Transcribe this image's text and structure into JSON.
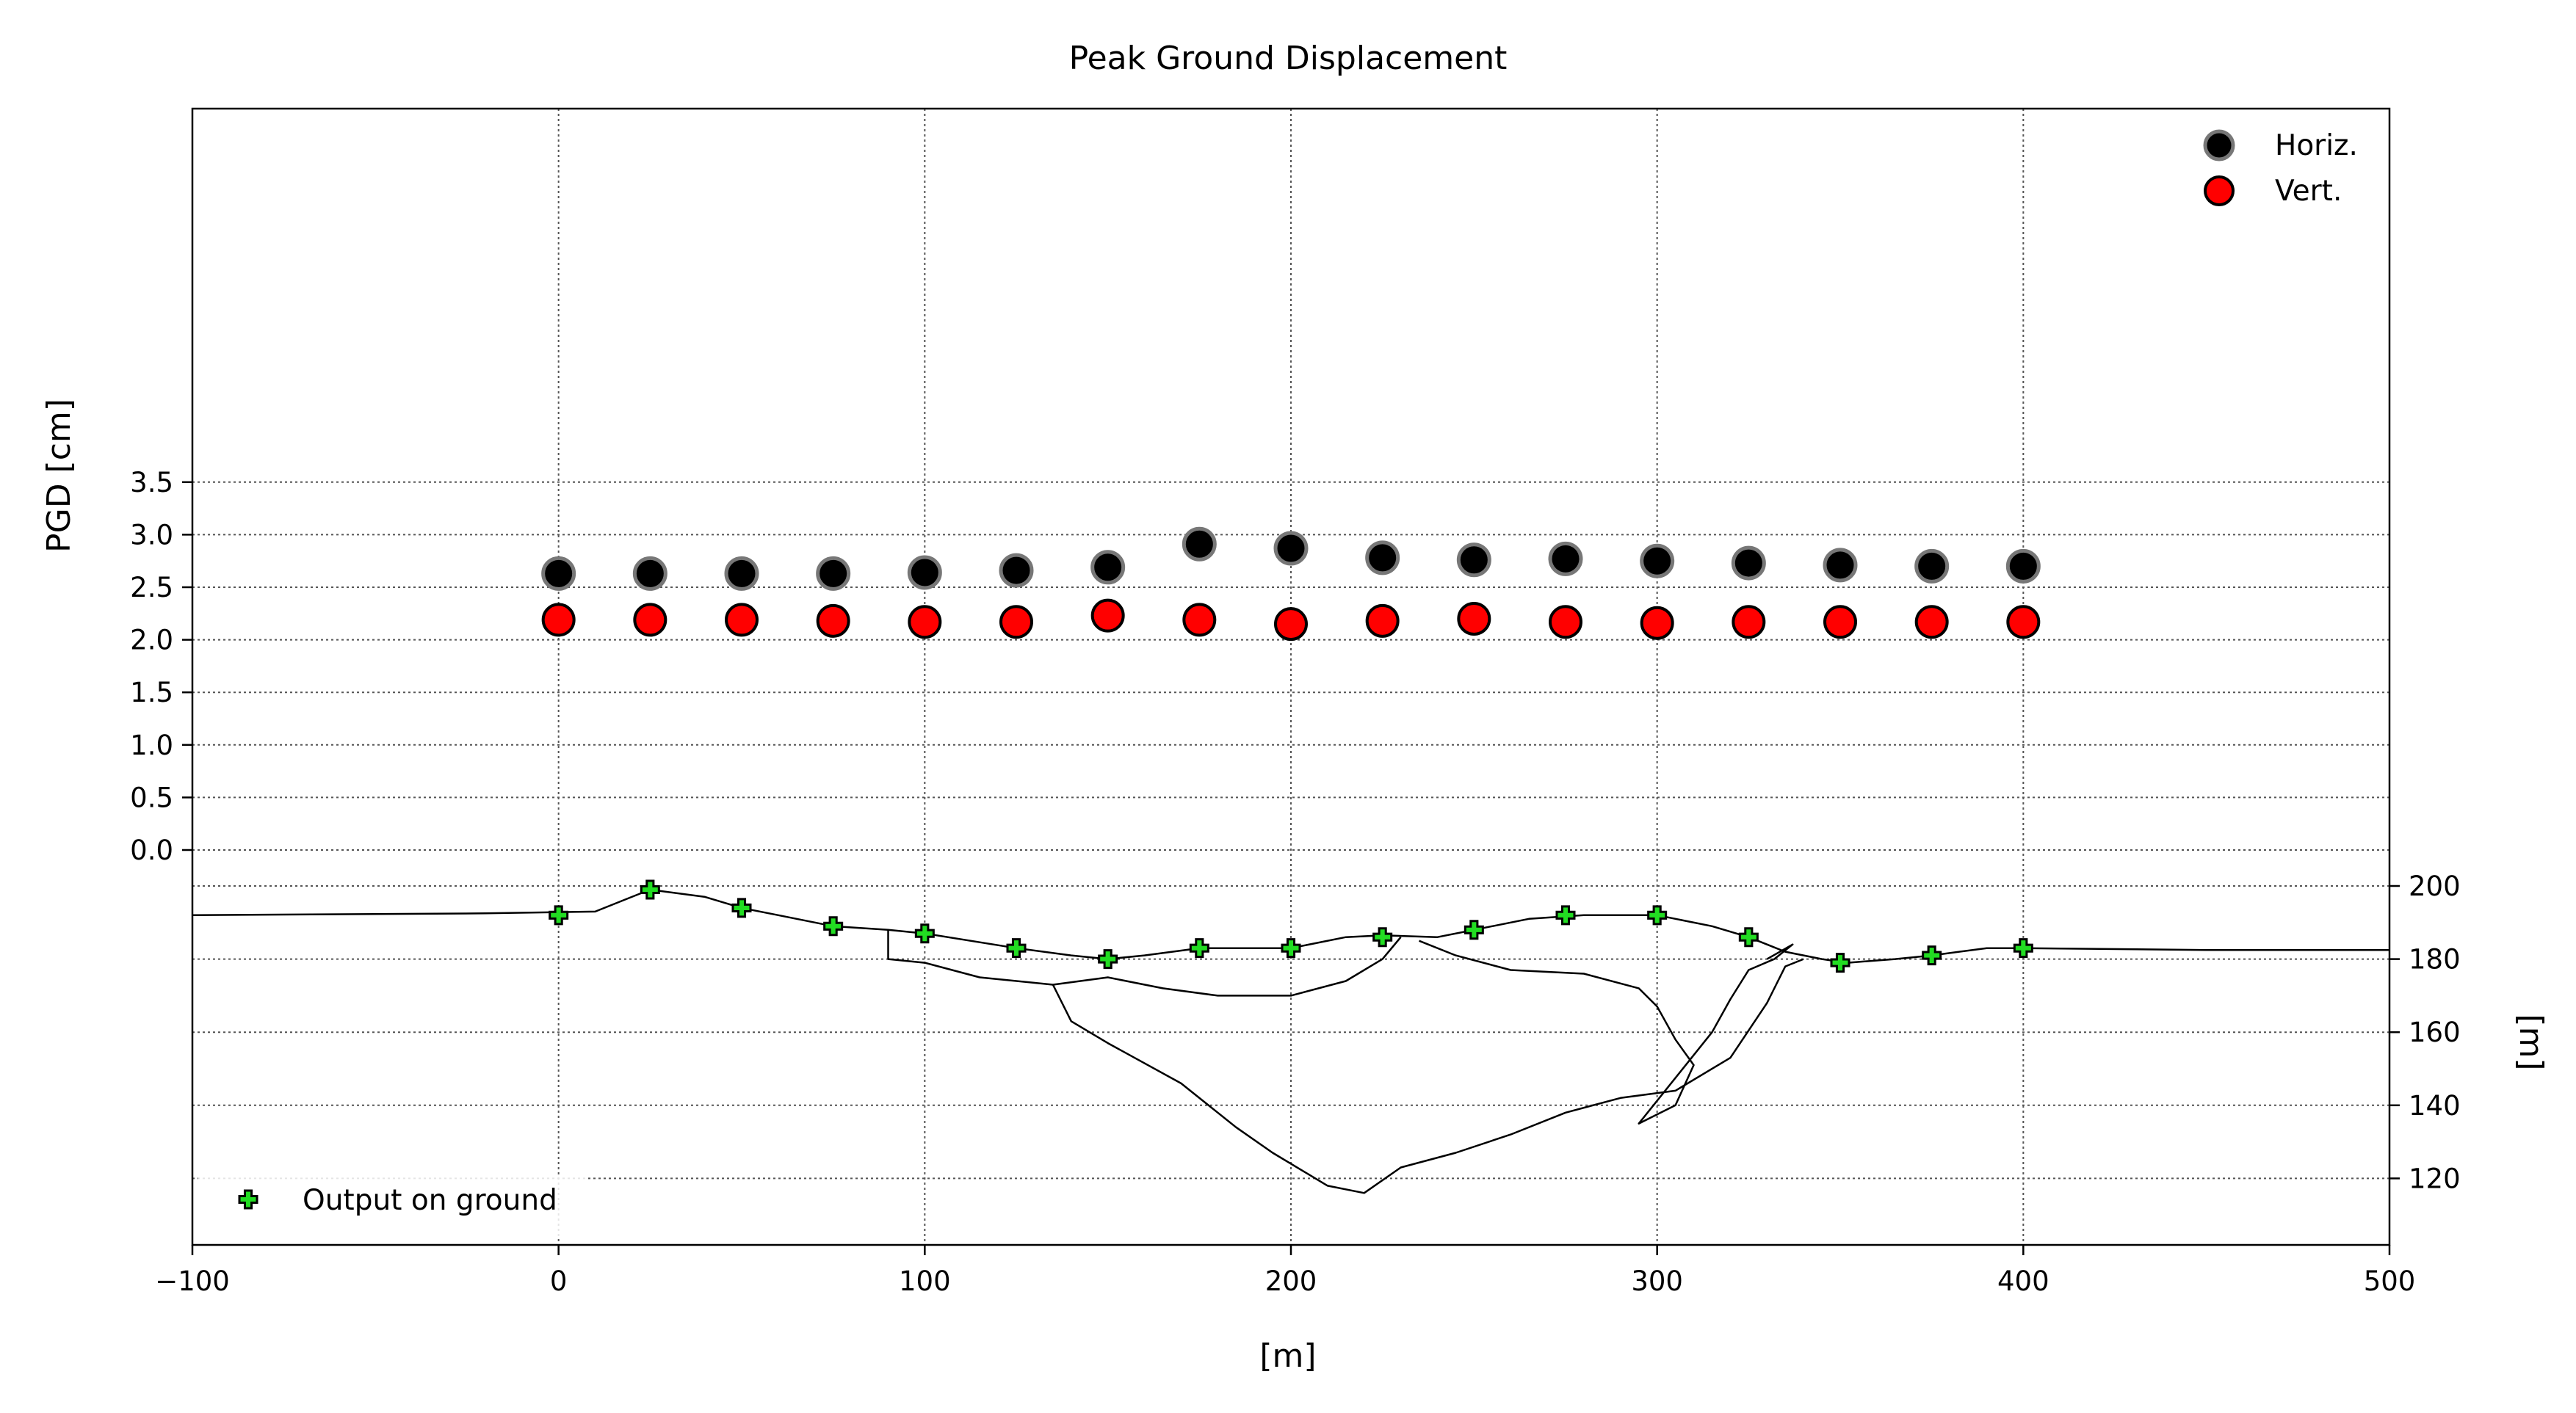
{
  "chart_data": {
    "type": "scatter",
    "title": "Peak Ground Displacement",
    "xlabel": "[m]",
    "ylabel": "PGD [cm]",
    "y2label": "[m]",
    "xlim": [
      -100,
      500
    ],
    "ylim": [
      0.0,
      3.5
    ],
    "x_ticks": [
      "−100",
      "0",
      "100",
      "200",
      "300",
      "400",
      "500"
    ],
    "y_ticks": [
      "0.0",
      "0.5",
      "1.0",
      "1.5",
      "2.0",
      "2.5",
      "3.0",
      "3.5"
    ],
    "y2_ticks": [
      "200",
      "180",
      "160",
      "140",
      "120"
    ],
    "grid": true,
    "legend_position": "top-right",
    "colors": {
      "horiz": "#000000",
      "horiz_edge": "#777777",
      "vert": "#ff0000",
      "output": "#22dd22"
    },
    "series": [
      {
        "name": "Horiz.",
        "x": [
          0,
          25,
          50,
          75,
          100,
          125,
          150,
          175,
          200,
          225,
          250,
          275,
          300,
          325,
          350,
          375,
          400
        ],
        "values": [
          2.63,
          2.63,
          2.63,
          2.63,
          2.64,
          2.66,
          2.69,
          2.91,
          2.87,
          2.78,
          2.76,
          2.77,
          2.75,
          2.73,
          2.71,
          2.7,
          2.7
        ]
      },
      {
        "name": "Vert.",
        "x": [
          0,
          25,
          50,
          75,
          100,
          125,
          150,
          175,
          200,
          225,
          250,
          275,
          300,
          325,
          350,
          375,
          400
        ],
        "values": [
          2.19,
          2.19,
          2.19,
          2.18,
          2.17,
          2.17,
          2.23,
          2.19,
          2.15,
          2.18,
          2.2,
          2.17,
          2.16,
          2.17,
          2.17,
          2.17,
          2.17
        ]
      },
      {
        "name": "Output on ground",
        "x": [
          0,
          25,
          50,
          75,
          100,
          125,
          150,
          175,
          200,
          225,
          250,
          275,
          300,
          325,
          350,
          375,
          400
        ],
        "elevation_m": [
          192,
          199,
          194,
          189,
          187,
          183,
          180,
          183,
          183,
          186,
          188,
          192,
          192,
          186,
          179,
          181,
          183
        ]
      }
    ],
    "profile": {
      "ground_surface": [
        [
          -100,
          192
        ],
        [
          -20,
          192.5
        ],
        [
          10,
          193
        ],
        [
          20,
          197
        ],
        [
          25,
          199
        ],
        [
          40,
          197
        ],
        [
          50,
          194
        ],
        [
          60,
          192
        ],
        [
          75,
          189
        ],
        [
          90,
          188
        ],
        [
          100,
          187
        ],
        [
          125,
          183
        ],
        [
          140,
          181
        ],
        [
          150,
          180
        ],
        [
          160,
          181
        ],
        [
          175,
          183
        ],
        [
          200,
          183
        ],
        [
          215,
          186
        ],
        [
          225,
          186.5
        ],
        [
          240,
          186
        ],
        [
          250,
          188
        ],
        [
          265,
          191
        ],
        [
          280,
          192
        ],
        [
          300,
          192
        ],
        [
          315,
          189
        ],
        [
          325,
          186
        ],
        [
          335,
          182
        ],
        [
          345,
          180
        ],
        [
          352,
          179
        ],
        [
          365,
          180
        ],
        [
          375,
          181
        ],
        [
          390,
          183
        ],
        [
          400,
          183
        ],
        [
          450,
          182.5
        ],
        [
          500,
          182.5
        ]
      ],
      "layer_1": [
        [
          90,
          188
        ],
        [
          90,
          180
        ],
        [
          100,
          179
        ],
        [
          115,
          175
        ],
        [
          135,
          173
        ],
        [
          150,
          175
        ],
        [
          165,
          172
        ],
        [
          180,
          170
        ],
        [
          200,
          170
        ],
        [
          215,
          174
        ],
        [
          225,
          180
        ],
        [
          230,
          186
        ]
      ],
      "layer_2": [
        [
          135,
          173
        ],
        [
          140,
          163
        ],
        [
          150,
          157
        ],
        [
          170,
          146
        ],
        [
          185,
          134
        ],
        [
          195,
          127
        ],
        [
          210,
          118
        ],
        [
          220,
          116
        ],
        [
          230,
          123
        ],
        [
          245,
          127
        ],
        [
          260,
          132
        ],
        [
          275,
          138
        ],
        [
          290,
          142
        ],
        [
          305,
          144
        ],
        [
          320,
          153
        ],
        [
          330,
          168
        ],
        [
          335,
          178
        ],
        [
          340,
          180
        ]
      ],
      "layer_3": [
        [
          235,
          185
        ],
        [
          245,
          181
        ],
        [
          260,
          177
        ],
        [
          280,
          176
        ],
        [
          295,
          172
        ],
        [
          300,
          167
        ],
        [
          305,
          158
        ],
        [
          310,
          151
        ],
        [
          305,
          140
        ],
        [
          295,
          135
        ],
        [
          315,
          160
        ],
        [
          320,
          169
        ],
        [
          325,
          177
        ],
        [
          332,
          180
        ],
        [
          337,
          184
        ],
        [
          330,
          180
        ]
      ]
    }
  }
}
